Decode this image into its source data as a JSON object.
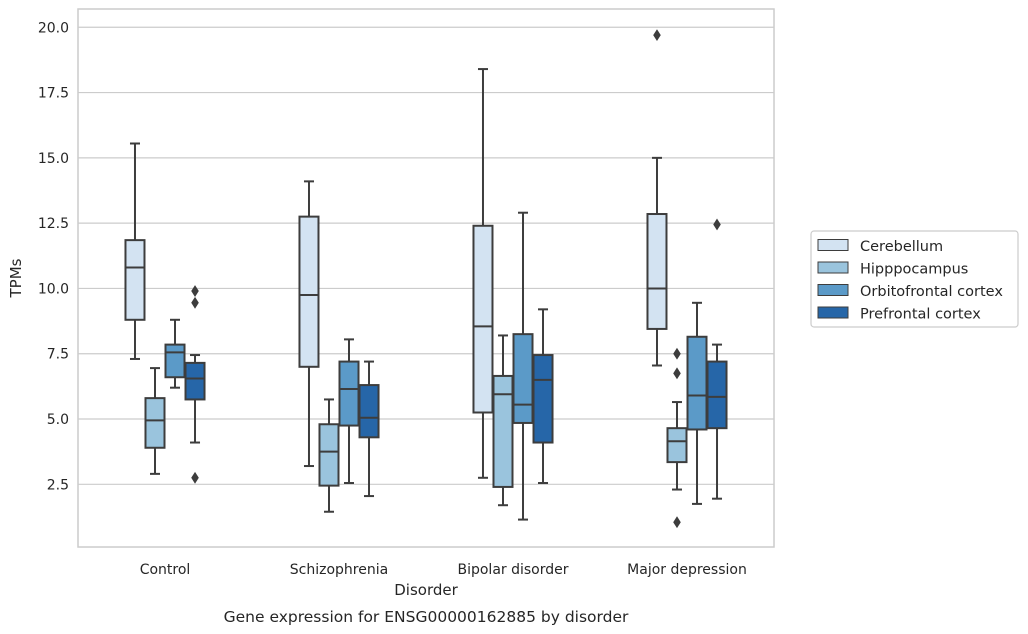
{
  "chart_data": {
    "type": "box",
    "xlabel": "Disorder",
    "ylabel": "TPMs",
    "caption": "Gene expression for ENSG00000162885 by disorder",
    "categories": [
      "Control",
      "Schizophrenia",
      "Bipolar disorder",
      "Major depression"
    ],
    "ylim": [
      0.1,
      20.7
    ],
    "yticks": [
      "2.5",
      "5.0",
      "7.5",
      "10.0",
      "12.5",
      "15.0",
      "17.5",
      "20.0"
    ],
    "grid": "horizontal",
    "legend_position": "right",
    "series": [
      {
        "name": "Cerebellum",
        "color": "#d3e3f2",
        "boxes": [
          {
            "low": 7.3,
            "q1": 8.8,
            "median": 10.8,
            "q3": 11.85,
            "high": 15.55,
            "outliers": []
          },
          {
            "low": 3.2,
            "q1": 7.0,
            "median": 9.75,
            "q3": 12.75,
            "high": 14.1,
            "outliers": []
          },
          {
            "low": 2.75,
            "q1": 5.25,
            "median": 8.55,
            "q3": 12.4,
            "high": 18.4,
            "outliers": []
          },
          {
            "low": 7.05,
            "q1": 8.45,
            "median": 10.0,
            "q3": 12.85,
            "high": 15.0,
            "outliers": [
              19.7
            ]
          }
        ]
      },
      {
        "name": "Hipppocampus",
        "color": "#9ac4dd",
        "boxes": [
          {
            "low": 2.9,
            "q1": 3.9,
            "median": 4.95,
            "q3": 5.8,
            "high": 6.95,
            "outliers": []
          },
          {
            "low": 1.45,
            "q1": 2.45,
            "median": 3.75,
            "q3": 4.8,
            "high": 5.75,
            "outliers": []
          },
          {
            "low": 1.7,
            "q1": 2.4,
            "median": 5.95,
            "q3": 6.65,
            "high": 8.2,
            "outliers": []
          },
          {
            "low": 2.3,
            "q1": 3.35,
            "median": 4.15,
            "q3": 4.65,
            "high": 5.65,
            "outliers": [
              1.05,
              6.75,
              7.5
            ]
          }
        ]
      },
      {
        "name": "Orbitofrontal cortex",
        "color": "#5b9ac8",
        "boxes": [
          {
            "low": 6.2,
            "q1": 6.6,
            "median": 7.55,
            "q3": 7.85,
            "high": 8.8,
            "outliers": []
          },
          {
            "low": 2.55,
            "q1": 4.75,
            "median": 6.15,
            "q3": 7.2,
            "high": 8.05,
            "outliers": []
          },
          {
            "low": 1.15,
            "q1": 4.85,
            "median": 5.55,
            "q3": 8.25,
            "high": 12.9,
            "outliers": []
          },
          {
            "low": 1.75,
            "q1": 4.6,
            "median": 5.9,
            "q3": 8.15,
            "high": 9.45,
            "outliers": []
          }
        ]
      },
      {
        "name": "Prefrontal cortex",
        "color": "#2666a8",
        "boxes": [
          {
            "low": 4.1,
            "q1": 5.75,
            "median": 6.55,
            "q3": 7.15,
            "high": 7.45,
            "outliers": [
              2.75,
              9.45,
              9.9
            ]
          },
          {
            "low": 2.05,
            "q1": 4.3,
            "median": 5.05,
            "q3": 6.3,
            "high": 7.2,
            "outliers": []
          },
          {
            "low": 2.55,
            "q1": 4.1,
            "median": 6.5,
            "q3": 7.45,
            "high": 9.2,
            "outliers": []
          },
          {
            "low": 1.95,
            "q1": 4.65,
            "median": 5.85,
            "q3": 7.2,
            "high": 7.85,
            "outliers": [
              12.45
            ]
          }
        ]
      }
    ]
  }
}
